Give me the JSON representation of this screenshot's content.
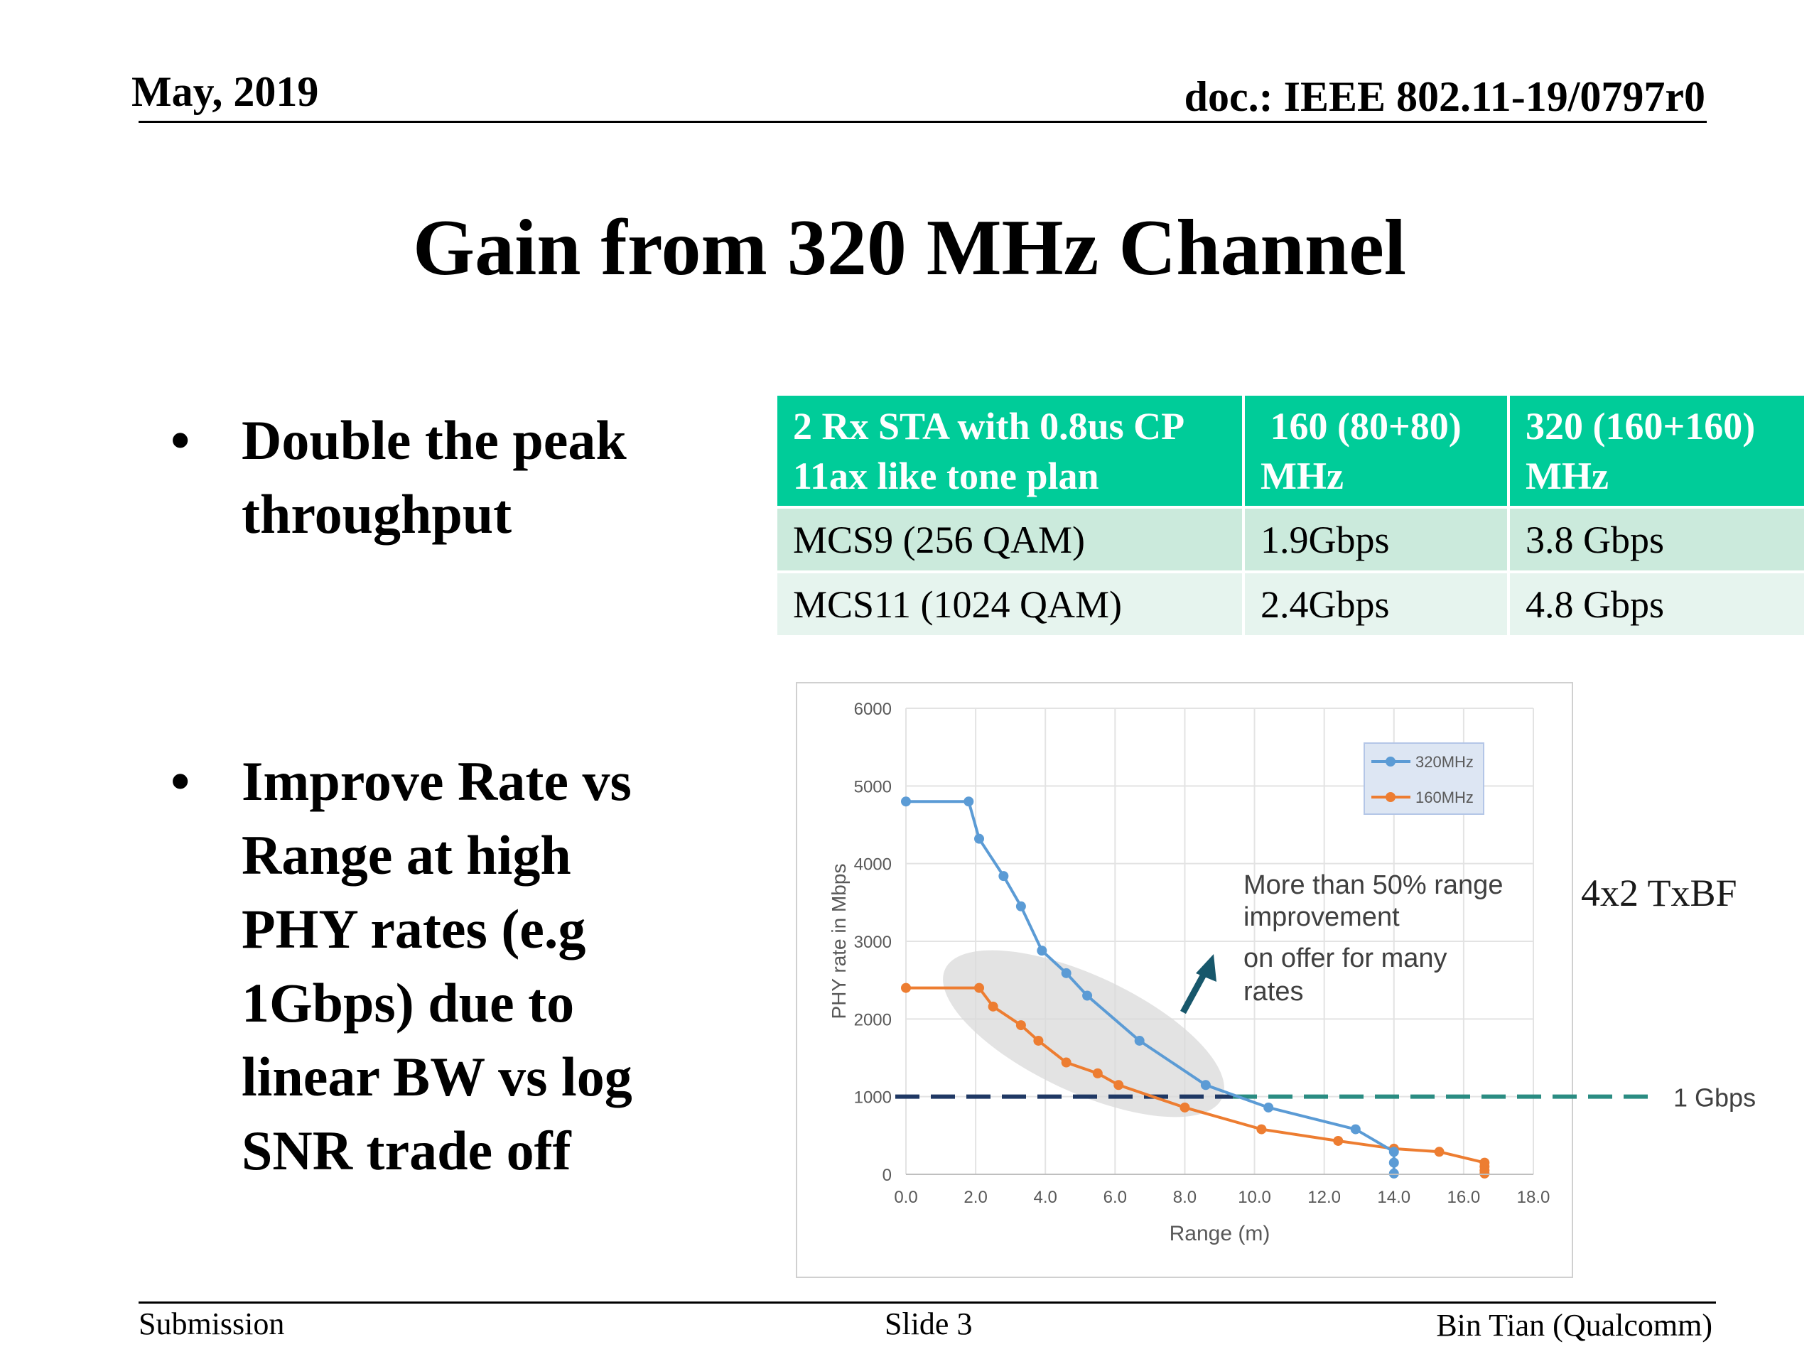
{
  "header": {
    "date": "May, 2019",
    "doc": "doc.: IEEE 802.11-19/0797r0"
  },
  "title": "Gain from 320 MHz Channel",
  "bullets": [
    {
      "marker": "•",
      "lines": [
        "Double the peak",
        "throughput"
      ]
    },
    {
      "marker": "•",
      "lines": [
        "Improve Rate vs",
        "Range at high",
        "PHY rates (e.g",
        "1Gbps) due to",
        "linear BW vs log",
        "SNR trade off"
      ]
    }
  ],
  "table": {
    "header": [
      [
        "2 Rx STA with 0.8us CP",
        "11ax like tone plan"
      ],
      [
        " 160 (80+80)",
        "MHz"
      ],
      [
        "320 (160+160)",
        "MHz"
      ]
    ],
    "rows": [
      [
        "MCS9 (256 QAM)",
        "1.9Gbps",
        "3.8 Gbps"
      ],
      [
        "MCS11 (1024 QAM)",
        "2.4Gbps",
        "4.8 Gbps"
      ]
    ],
    "header_color": "#00cc99",
    "row_colors": [
      "#cbeadc",
      "#e6f4ee"
    ]
  },
  "chart_data": {
    "type": "line",
    "xlabel": "Range (m)",
    "ylabel": "PHY rate in Mbps",
    "xlim": [
      0,
      18
    ],
    "ylim": [
      0,
      6000
    ],
    "x_ticks": [
      "0.0",
      "2.0",
      "4.0",
      "6.0",
      "8.0",
      "10.0",
      "12.0",
      "14.0",
      "16.0",
      "18.0"
    ],
    "y_ticks": [
      "0",
      "1000",
      "2000",
      "3000",
      "4000",
      "5000",
      "6000"
    ],
    "grid": true,
    "legend": "top-right",
    "series": [
      {
        "name": "320MHz",
        "color": "#5b9bd5",
        "x": [
          0.0,
          1.8,
          2.1,
          2.8,
          3.3,
          3.9,
          4.6,
          5.2,
          6.7,
          8.6,
          10.4,
          12.9,
          14.0,
          14.0,
          14.0
        ],
        "y": [
          4800,
          4800,
          4320,
          3840,
          3450,
          2880,
          2590,
          2300,
          1720,
          1150,
          860,
          580,
          290,
          150,
          10
        ]
      },
      {
        "name": "160MHz",
        "color": "#ed7d31",
        "x": [
          0.0,
          2.1,
          2.5,
          3.3,
          3.8,
          4.6,
          5.5,
          6.1,
          8.0,
          10.2,
          12.4,
          14.0,
          15.3,
          16.6,
          16.6,
          16.6,
          16.6
        ],
        "y": [
          2400,
          2400,
          2160,
          1920,
          1720,
          1440,
          1300,
          1150,
          860,
          580,
          430,
          330,
          290,
          150,
          100,
          50,
          10
        ]
      }
    ],
    "reference_line": {
      "y": 1000,
      "label": "1 Gbps"
    },
    "annotations": [
      "More than 50% range",
      "improvement",
      "on offer for many",
      "rates"
    ],
    "side_label": "4x2 TxBF"
  },
  "footer": {
    "left": "Submission",
    "center": "Slide 3",
    "right": "Bin Tian (Qualcomm)"
  }
}
